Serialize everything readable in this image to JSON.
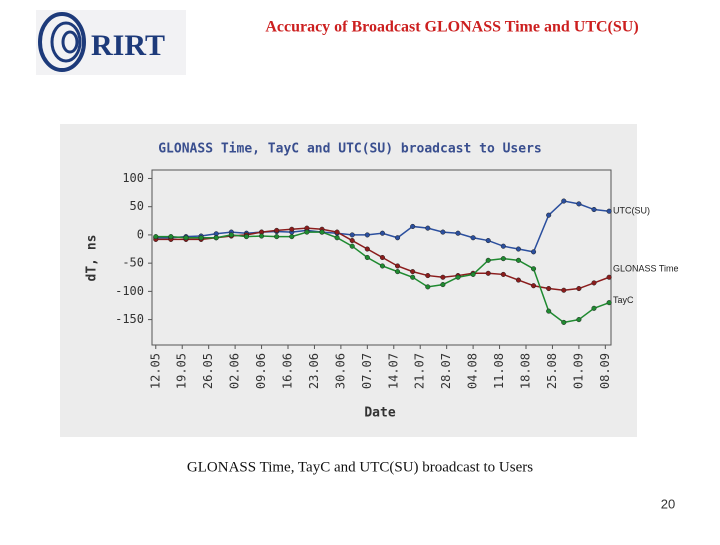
{
  "slide": {
    "logo": "RIRT",
    "title": "Accuracy of Broadcast GLONASS Time and UTC(SU)",
    "caption": "GLONASS Time, TayC and UTC(SU) broadcast to Users",
    "page_number": "20"
  },
  "chart_data": {
    "type": "line",
    "title": "GLONASS Time, TayC and UTC(SU) broadcast to Users",
    "x_label": "Date",
    "y_label": "dT, ns",
    "x": [
      0,
      4,
      8,
      12,
      16,
      20,
      24,
      28,
      32,
      36,
      40,
      44,
      48,
      52,
      56,
      60,
      64,
      68,
      72,
      76,
      80,
      84,
      88,
      92,
      96,
      100,
      104,
      108,
      112,
      116,
      120
    ],
    "xlim": [
      -1,
      120.5
    ],
    "xticks": [
      {
        "value": 0,
        "label": "12.05"
      },
      {
        "value": 7,
        "label": "19.05"
      },
      {
        "value": 14,
        "label": "26.05"
      },
      {
        "value": 21,
        "label": "02.06"
      },
      {
        "value": 28,
        "label": "09.06"
      },
      {
        "value": 35,
        "label": "16.06"
      },
      {
        "value": 42,
        "label": "23.06"
      },
      {
        "value": 49,
        "label": "30.06"
      },
      {
        "value": 56,
        "label": "07.07"
      },
      {
        "value": 63,
        "label": "14.07"
      },
      {
        "value": 70,
        "label": "21.07"
      },
      {
        "value": 77,
        "label": "28.07"
      },
      {
        "value": 84,
        "label": "04.08"
      },
      {
        "value": 91,
        "label": "11.08"
      },
      {
        "value": 98,
        "label": "18.08"
      },
      {
        "value": 105,
        "label": "25.08"
      },
      {
        "value": 112,
        "label": "01.09"
      },
      {
        "value": 119,
        "label": "08.09"
      }
    ],
    "ylim": [
      -195,
      115
    ],
    "yticks": [
      100,
      50,
      0,
      -50,
      -100,
      -150
    ],
    "grid": false,
    "series": [
      {
        "name": "UTC(SU)",
        "color": "#2b4f9e",
        "values": [
          -5,
          -5,
          -3,
          -2,
          2,
          5,
          3,
          5,
          6,
          5,
          8,
          5,
          3,
          0,
          0,
          3,
          -5,
          15,
          12,
          5,
          3,
          -5,
          -10,
          -20,
          -25,
          -30,
          35,
          60,
          55,
          45,
          42
        ]
      },
      {
        "name": "GLONASS Time",
        "color": "#8b1c1c",
        "values": [
          -8,
          -8,
          -8,
          -8,
          -5,
          -2,
          0,
          5,
          8,
          10,
          12,
          10,
          5,
          -10,
          -25,
          -40,
          -55,
          -65,
          -72,
          -75,
          -72,
          -68,
          -68,
          -70,
          -80,
          -90,
          -95,
          -98,
          -95,
          -85,
          -75
        ]
      },
      {
        "name": "TayC",
        "color": "#1f8a30",
        "values": [
          -3,
          -3,
          -5,
          -5,
          -5,
          0,
          -3,
          -2,
          -3,
          -3,
          5,
          5,
          -5,
          -20,
          -40,
          -55,
          -65,
          -75,
          -92,
          -88,
          -75,
          -70,
          -45,
          -42,
          -45,
          -60,
          -135,
          -155,
          -150,
          -130,
          -120
        ]
      }
    ]
  }
}
